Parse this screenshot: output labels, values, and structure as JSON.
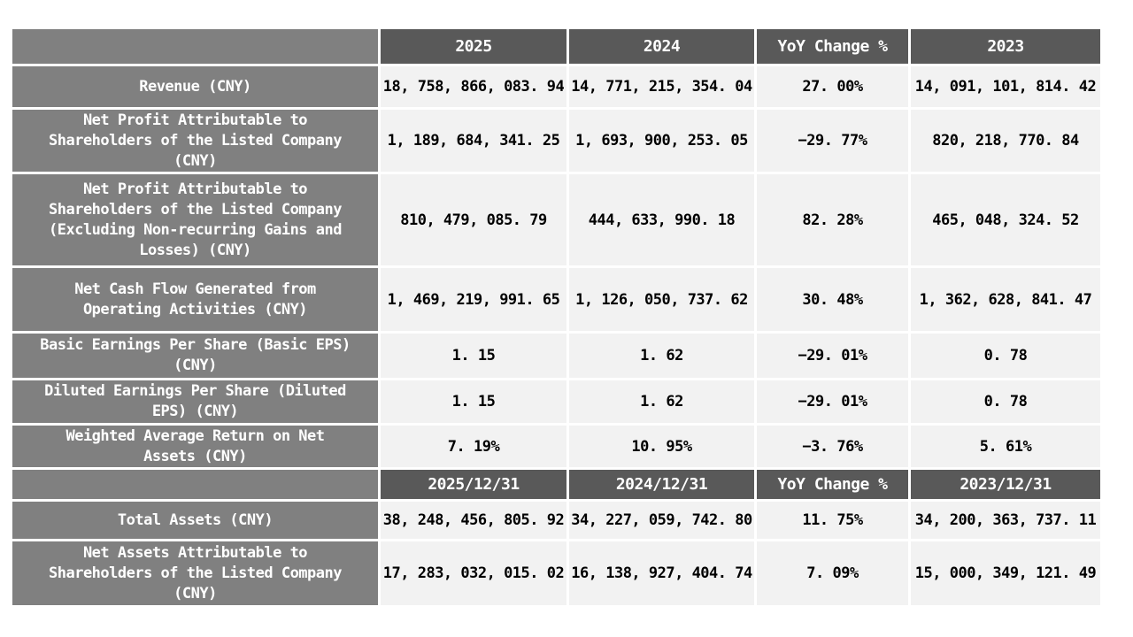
{
  "colors": {
    "header_background": "#595959",
    "row_label_background": "#808080",
    "value_cell_background": "#f2f2f2",
    "header_text": "#ffffff",
    "value_text": "#000000",
    "grid_line": "#ffffff"
  },
  "table": {
    "section1": {
      "corner": "",
      "columns": [
        "2025",
        "2024",
        "YoY Change %",
        "2023"
      ],
      "rows": [
        {
          "label": "Revenue (CNY)",
          "values": [
            "18, 758, 866, 083. 94",
            "14, 771, 215, 354. 04",
            "27. 00%",
            "14, 091, 101, 814. 42"
          ]
        },
        {
          "label": "Net Profit Attributable to\nShareholders of the Listed Company\n(CNY)",
          "values": [
            "1, 189, 684, 341. 25",
            "1, 693, 900, 253. 05",
            "−29. 77%",
            "820, 218, 770. 84"
          ]
        },
        {
          "label": "Net Profit Attributable to\nShareholders of the Listed Company\n(Excluding Non-recurring Gains and\nLosses) (CNY)",
          "values": [
            "810, 479, 085. 79",
            "444, 633, 990. 18",
            "82. 28%",
            "465, 048, 324. 52"
          ]
        },
        {
          "label": "Net Cash Flow Generated from\nOperating Activities (CNY)",
          "values": [
            "1, 469, 219, 991. 65",
            "1, 126, 050, 737. 62",
            "30. 48%",
            "1, 362, 628, 841. 47"
          ]
        },
        {
          "label": "Basic Earnings Per Share (Basic EPS)\n(CNY)",
          "values": [
            "1. 15",
            "1. 62",
            "−29. 01%",
            "0. 78"
          ]
        },
        {
          "label": "Diluted Earnings Per Share (Diluted\nEPS) (CNY)",
          "values": [
            "1. 15",
            "1. 62",
            "−29. 01%",
            "0. 78"
          ]
        },
        {
          "label": "Weighted Average Return on Net\nAssets (CNY)",
          "values": [
            "7. 19%",
            "10. 95%",
            "−3. 76%",
            "5. 61%"
          ]
        }
      ]
    },
    "section2": {
      "corner": "",
      "columns": [
        "2025/12/31",
        "2024/12/31",
        "YoY Change %",
        "2023/12/31"
      ],
      "rows": [
        {
          "label": "Total Assets (CNY)",
          "values": [
            "38, 248, 456, 805. 92",
            "34, 227, 059, 742. 80",
            "11. 75%",
            "34, 200, 363, 737. 11"
          ]
        },
        {
          "label": "Net Assets Attributable to\nShareholders of the Listed Company\n(CNY)",
          "values": [
            "17, 283, 032, 015. 02",
            "16, 138, 927, 404. 74",
            "7. 09%",
            "15, 000, 349, 121. 49"
          ]
        }
      ]
    }
  },
  "chart_data": {
    "type": "table",
    "title": "",
    "sections": [
      {
        "columns": [
          "",
          "2025",
          "2024",
          "YoY Change %",
          "2023"
        ],
        "rows": [
          {
            "label": "Revenue (CNY)",
            "values": [
              "18,758,866,083.94",
              "14,771,215,354.04",
              "27.00%",
              "14,091,101,814.42"
            ]
          },
          {
            "label": "Net Profit Attributable to Shareholders of the Listed Company (CNY)",
            "values": [
              "1,189,684,341.25",
              "1,693,900,253.05",
              "-29.77%",
              "820,218,770.84"
            ]
          },
          {
            "label": "Net Profit Attributable to Shareholders of the Listed Company (Excluding Non-recurring Gains and Losses) (CNY)",
            "values": [
              "810,479,085.79",
              "444,633,990.18",
              "82.28%",
              "465,048,324.52"
            ]
          },
          {
            "label": "Net Cash Flow Generated from Operating Activities (CNY)",
            "values": [
              "1,469,219,991.65",
              "1,126,050,737.62",
              "30.48%",
              "1,362,628,841.47"
            ]
          },
          {
            "label": "Basic Earnings Per Share (Basic EPS) (CNY)",
            "values": [
              "1.15",
              "1.62",
              "-29.01%",
              "0.78"
            ]
          },
          {
            "label": "Diluted Earnings Per Share (Diluted EPS) (CNY)",
            "values": [
              "1.15",
              "1.62",
              "-29.01%",
              "0.78"
            ]
          },
          {
            "label": "Weighted Average Return on Net Assets (CNY)",
            "values": [
              "7.19%",
              "10.95%",
              "-3.76%",
              "5.61%"
            ]
          }
        ]
      },
      {
        "columns": [
          "",
          "2025/12/31",
          "2024/12/31",
          "YoY Change %",
          "2023/12/31"
        ],
        "rows": [
          {
            "label": "Total Assets (CNY)",
            "values": [
              "38,248,456,805.92",
              "34,227,059,742.80",
              "11.75%",
              "34,200,363,737.11"
            ]
          },
          {
            "label": "Net Assets Attributable to Shareholders of the Listed Company (CNY)",
            "values": [
              "17,283,032,015.02",
              "16,138,927,404.74",
              "7.09%",
              "15,000,349,121.49"
            ]
          }
        ]
      }
    ]
  }
}
